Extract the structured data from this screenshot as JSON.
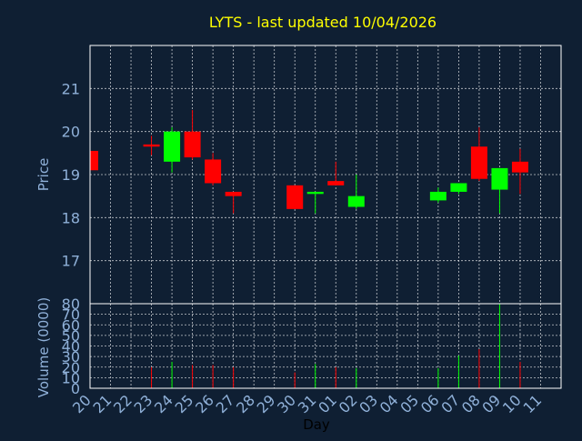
{
  "chart_data": {
    "type": "candlestick",
    "title": "LYTS - last updated 10/04/2026",
    "xlabel": "Day",
    "price_ylabel": "Price",
    "volume_ylabel": "Volume (0000)",
    "x_tick_labels": [
      "20",
      "21",
      "22",
      "23",
      "24",
      "25",
      "26",
      "27",
      "28",
      "29",
      "30",
      "31",
      "01",
      "02",
      "03",
      "04",
      "05",
      "06",
      "07",
      "08",
      "09",
      "10",
      "11"
    ],
    "price_ylim": [
      16,
      22
    ],
    "price_yticks": [
      17,
      18,
      19,
      20,
      21
    ],
    "volume_ylim": [
      0,
      80
    ],
    "volume_yticks": [
      0,
      10,
      20,
      30,
      40,
      50,
      60,
      70,
      80
    ],
    "grid": true,
    "up_color": "#00ff00",
    "down_color": "#ff0000",
    "candles": [
      {
        "day": "20",
        "open": 19.55,
        "high": 19.55,
        "low": 19.1,
        "close": 19.1,
        "volume": 0
      },
      {
        "day": "23",
        "open": 19.7,
        "high": 19.9,
        "low": 19.45,
        "close": 19.65,
        "volume": 20
      },
      {
        "day": "24",
        "open": 19.3,
        "high": 20.1,
        "low": 19.05,
        "close": 20.0,
        "volume": 25
      },
      {
        "day": "25",
        "open": 20.0,
        "high": 20.5,
        "low": 19.35,
        "close": 19.4,
        "volume": 22
      },
      {
        "day": "26",
        "open": 19.35,
        "high": 19.5,
        "low": 18.75,
        "close": 18.8,
        "volume": 22
      },
      {
        "day": "27",
        "open": 18.6,
        "high": 18.6,
        "low": 18.1,
        "close": 18.5,
        "volume": 20
      },
      {
        "day": "30",
        "open": 18.75,
        "high": 18.75,
        "low": 18.2,
        "close": 18.2,
        "volume": 15
      },
      {
        "day": "31",
        "open": 18.55,
        "high": 18.6,
        "low": 18.1,
        "close": 18.6,
        "volume": 23
      },
      {
        "day": "01",
        "open": 18.85,
        "high": 19.3,
        "low": 18.75,
        "close": 18.75,
        "volume": 20
      },
      {
        "day": "02",
        "open": 18.25,
        "high": 19.0,
        "low": 18.2,
        "close": 18.5,
        "volume": 19
      },
      {
        "day": "06",
        "open": 18.4,
        "high": 18.7,
        "low": 18.35,
        "close": 18.6,
        "volume": 19
      },
      {
        "day": "07",
        "open": 18.6,
        "high": 18.8,
        "low": 18.55,
        "close": 18.8,
        "volume": 31
      },
      {
        "day": "08",
        "open": 19.65,
        "high": 20.1,
        "low": 18.85,
        "close": 18.9,
        "volume": 37
      },
      {
        "day": "09",
        "open": 18.65,
        "high": 19.15,
        "low": 18.1,
        "close": 19.15,
        "volume": 80
      },
      {
        "day": "10",
        "open": 19.3,
        "high": 19.6,
        "low": 18.55,
        "close": 19.05,
        "volume": 25
      }
    ]
  }
}
